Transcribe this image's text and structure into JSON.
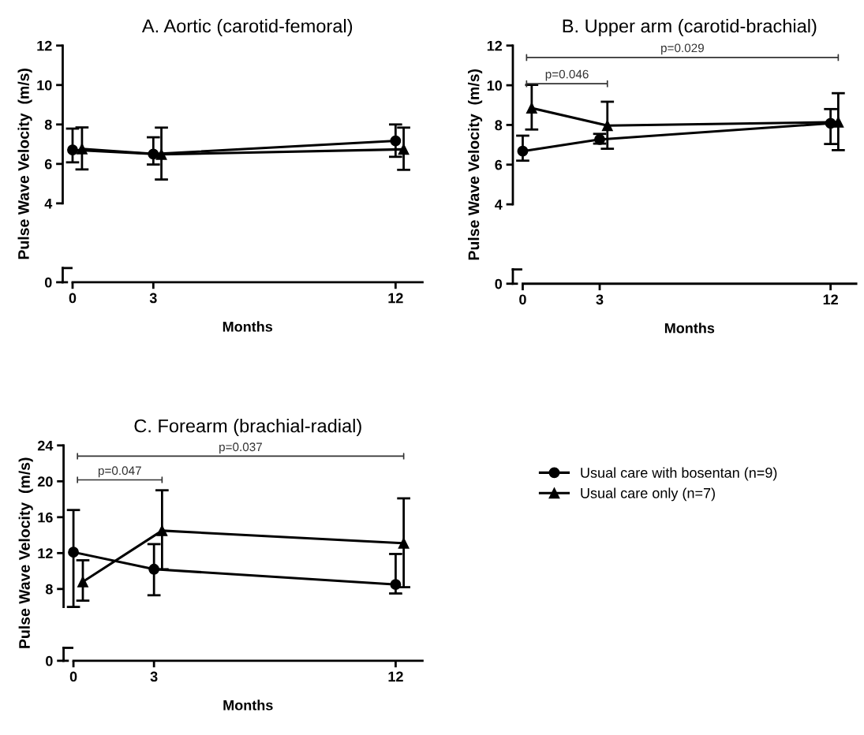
{
  "chart_data": [
    {
      "type": "line",
      "title": "A. Aortic (carotid-femoral)",
      "xlabel": "Months",
      "ylabel": "Pulse Wave Velocity  (m/s)",
      "xlim": [
        0,
        13
      ],
      "xticks": [
        0,
        3,
        12
      ],
      "ylim": [
        0,
        12
      ],
      "yticks": [
        0,
        4,
        6,
        8,
        10,
        12
      ],
      "grid": false,
      "legend": false,
      "series": [
        {
          "color": "#000000",
          "marker": "circle",
          "x": [
            0,
            3,
            12
          ],
          "values": [
            6.71,
            6.5,
            7.17
          ],
          "errors": [
            [
              6.08,
              7.79
            ],
            [
              5.97,
              7.35
            ],
            [
              6.36,
              8.0
            ]
          ]
        },
        {
          "color": "#000000",
          "marker": "triangle",
          "x": [
            0.35,
            3.3,
            12.3
          ],
          "values": [
            6.76,
            6.48,
            6.74
          ],
          "errors": [
            [
              5.72,
              7.85
            ],
            [
              5.21,
              7.84
            ],
            [
              5.7,
              7.84
            ]
          ]
        }
      ]
    },
    {
      "type": "line",
      "title": "B. Upper arm (carotid-brachial)",
      "xlabel": "Months",
      "ylabel": "Pulse Wave Velocity  (m/s)",
      "xlim": [
        0,
        13
      ],
      "xticks": [
        0,
        3,
        12
      ],
      "ylim": [
        0,
        12
      ],
      "yticks": [
        0,
        4,
        6,
        8,
        10,
        12
      ],
      "grid": false,
      "legend": false,
      "annotations": [
        "p=0.046",
        "p=0.029"
      ],
      "series": [
        {
          "color": "#000000",
          "marker": "circle",
          "x": [
            0,
            3,
            12
          ],
          "values": [
            6.68,
            7.27,
            8.08
          ],
          "errors": [
            [
              6.2,
              7.46
            ],
            [
              7.06,
              7.55
            ],
            [
              7.04,
              8.8
            ]
          ]
        },
        {
          "color": "#000000",
          "marker": "triangle",
          "x": [
            0.35,
            3.3,
            12.3
          ],
          "values": [
            8.85,
            7.97,
            8.14
          ],
          "errors": [
            [
              7.77,
              10.02
            ],
            [
              6.8,
              9.17
            ],
            [
              6.73,
              9.6
            ]
          ]
        }
      ]
    },
    {
      "type": "line",
      "title": "C. Forearm (brachial-radial)",
      "xlabel": "Months",
      "ylabel": "Pulse Wave Velocity  (m/s)",
      "xlim": [
        0,
        13
      ],
      "xticks": [
        0,
        3,
        12
      ],
      "ylim": [
        0,
        24
      ],
      "yticks": [
        0,
        8,
        12,
        16,
        20,
        24
      ],
      "grid": false,
      "legend": "right",
      "annotations": [
        "p=0.047",
        "p=0.037"
      ],
      "series": [
        {
          "name": "Usual care with bosentan (n=9)",
          "color": "#000000",
          "marker": "circle",
          "x": [
            0,
            3,
            12
          ],
          "values": [
            12.1,
            10.2,
            8.5
          ],
          "errors": [
            [
              6.0,
              16.8
            ],
            [
              7.3,
              13.0
            ],
            [
              7.5,
              11.9
            ]
          ]
        },
        {
          "name": "Usual care only (n=7)",
          "color": "#000000",
          "marker": "triangle",
          "x": [
            0.35,
            3.3,
            12.3
          ],
          "values": [
            8.8,
            14.5,
            13.1
          ],
          "errors": [
            [
              6.7,
              11.2
            ],
            [
              10.2,
              19.0
            ],
            [
              8.2,
              18.1
            ]
          ]
        }
      ]
    }
  ]
}
